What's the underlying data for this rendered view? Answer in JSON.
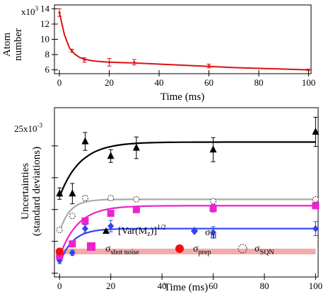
{
  "chart_data": [
    {
      "type": "line",
      "xlabel": "Time (ms)",
      "ylabel": [
        "Atom",
        "number"
      ],
      "y_exponent_label": "x10",
      "y_exponent": "3",
      "xlim": [
        -2,
        101
      ],
      "ylim": [
        5.5,
        14.5
      ],
      "xticks": [
        0,
        20,
        40,
        60,
        80,
        100
      ],
      "yticks": [
        6,
        8,
        10,
        12,
        14
      ],
      "ytick_labels": [
        "6",
        "8",
        "10",
        "12",
        "14"
      ],
      "grid": false,
      "color": "#dd1111",
      "points": {
        "x": [
          0,
          5,
          10,
          20,
          30,
          60,
          100
        ],
        "y": [
          13.5,
          8.5,
          7.3,
          7.0,
          7.0,
          6.5,
          6.0
        ],
        "err": [
          0.5,
          0.2,
          0.3,
          0.5,
          0.35,
          0.25,
          0.1
        ]
      },
      "fit": {
        "x": [
          0,
          2,
          4,
          6,
          8,
          10,
          13,
          16,
          20,
          25,
          30,
          40,
          50,
          60,
          70,
          80,
          90,
          100
        ],
        "y": [
          13.5,
          10.6,
          8.9,
          8.1,
          7.65,
          7.4,
          7.2,
          7.1,
          7.0,
          6.95,
          6.9,
          6.75,
          6.6,
          6.45,
          6.3,
          6.2,
          6.1,
          6.0
        ]
      }
    },
    {
      "type": "scatter",
      "xlabel": "Time (ms)",
      "ylabel": [
        "Uncertainties",
        "(standard deviations)"
      ],
      "y_exponent_label": "25x10",
      "y_exponent": "-3",
      "xlim": [
        -2,
        101
      ],
      "ylim": [
        4.4,
        31
      ],
      "xticks": [
        0,
        20,
        40,
        60,
        80,
        100
      ],
      "yticks": [
        5,
        10,
        15,
        20,
        25
      ],
      "ytick_labels": [
        "",
        "",
        "",
        "",
        ""
      ],
      "grid": false,
      "legend_position": "lower-middle",
      "series": [
        {
          "name": "[Var(M",
          "name_sub": "z",
          "name_tail": ")]",
          "name_sup": "1/2",
          "marker": "triangle",
          "color": "#000000",
          "x": [
            0,
            5,
            10,
            20,
            30,
            60,
            100
          ],
          "y": [
            17.5,
            17.5,
            25.7,
            23.4,
            24.7,
            24.4,
            27.2
          ],
          "err": [
            0.9,
            1.6,
            1.4,
            1.0,
            1.7,
            1.9,
            2.3
          ],
          "fit": {
            "start": 17.0,
            "plateau": 25.6,
            "tau": 8
          }
        },
        {
          "name": "σ",
          "name_sub": "fit",
          "marker": "diamond",
          "color": "#3344ee",
          "x": [
            0,
            5,
            10,
            20,
            60,
            100
          ],
          "y": [
            7.0,
            8.2,
            12.0,
            12.4,
            11.4,
            12.0
          ],
          "err": [
            0.5,
            0.4,
            0.6,
            0.9,
            0.9,
            1.1
          ],
          "fit": {
            "start": 6.5,
            "plateau": 12.0,
            "tau": 5
          }
        },
        {
          "name": "σ",
          "name_sub": "shot noise",
          "marker": "square",
          "color": "#ee22cc",
          "x": [
            0,
            5,
            10,
            20,
            30,
            60,
            100
          ],
          "y": [
            7.7,
            9.6,
            13.2,
            14.4,
            15.0,
            15.2,
            15.6
          ],
          "err": [
            0.3,
            0.3,
            0.4,
            0.4,
            0.5,
            0.6,
            0.5
          ],
          "fit": {
            "start": 7.6,
            "plateau": 15.6,
            "tau": 7
          }
        },
        {
          "name": "σ",
          "name_sub": "prep",
          "marker": "circle-filled",
          "color": "#ee1111",
          "band_color": "#f4aaaa",
          "x": [
            0
          ],
          "y": [
            8.4
          ],
          "band": {
            "x": [
              0,
              100
            ],
            "y": 8.4
          }
        },
        {
          "name": "σ",
          "name_sub": "SQN",
          "marker": "circle-open",
          "color": "#555555",
          "fit_color": "#aaaaaa",
          "x": [
            0,
            5,
            10,
            20,
            30,
            60,
            100
          ],
          "y": [
            11.8,
            14.0,
            16.8,
            16.8,
            16.6,
            16.3,
            16.6
          ],
          "err": [
            0.25,
            0.3,
            0.35,
            0.3,
            0.3,
            0.3,
            0.3
          ],
          "fit": {
            "start": 11.5,
            "plateau": 16.6,
            "tau": 4
          }
        }
      ]
    }
  ]
}
